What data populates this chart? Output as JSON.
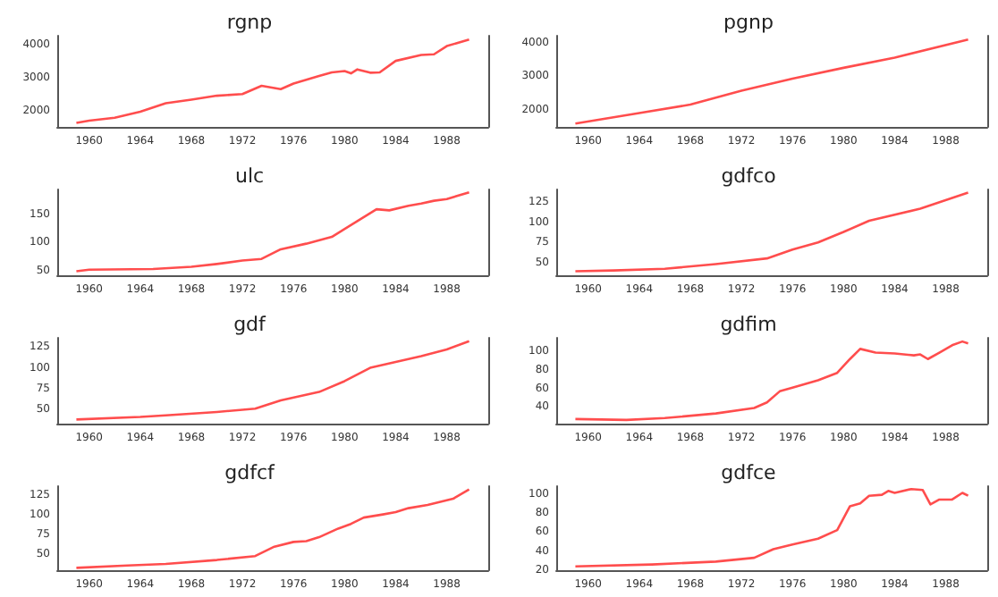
{
  "chart_data": [
    {
      "type": "line",
      "title": "rgnp",
      "color": "#ff4d4d",
      "xlim": [
        1957.5,
        1991.25
      ],
      "xticks": [
        1960,
        1964,
        1968,
        1972,
        1976,
        1980,
        1984,
        1988
      ],
      "ylim": [
        1500,
        4275
      ],
      "yticks": [
        2000,
        3000,
        4000
      ],
      "x": [
        1959,
        1960,
        1962,
        1964,
        1966,
        1968,
        1970,
        1972,
        1973.5,
        1975,
        1976,
        1978,
        1979,
        1980,
        1980.5,
        1981,
        1982,
        1982.75,
        1984,
        1986,
        1987,
        1988,
        1989.75
      ],
      "values": [
        1620,
        1690,
        1780,
        1960,
        2220,
        2330,
        2450,
        2500,
        2750,
        2650,
        2820,
        3050,
        3160,
        3200,
        3130,
        3250,
        3150,
        3160,
        3510,
        3690,
        3710,
        3960,
        4160
      ]
    },
    {
      "type": "line",
      "title": "pgnp",
      "color": "#ff4d4d",
      "xlim": [
        1957.5,
        1991.25
      ],
      "xticks": [
        1960,
        1964,
        1968,
        1972,
        1976,
        1980,
        1984,
        1988
      ],
      "ylim": [
        1500,
        4200
      ],
      "yticks": [
        2000,
        3000,
        4000
      ],
      "x": [
        1959,
        1964,
        1968,
        1972,
        1976,
        1980,
        1984,
        1989.75
      ],
      "values": [
        1600,
        1910,
        2160,
        2570,
        2930,
        3250,
        3550,
        4090
      ]
    },
    {
      "type": "line",
      "title": "ulc",
      "color": "#ff4d4d",
      "xlim": [
        1957.5,
        1991.25
      ],
      "xticks": [
        1960,
        1964,
        1968,
        1972,
        1976,
        1980,
        1984,
        1988
      ],
      "ylim": [
        42,
        194
      ],
      "yticks": [
        50,
        100,
        150
      ],
      "x": [
        1959,
        1960,
        1965,
        1968,
        1970,
        1972,
        1973.5,
        1975,
        1977,
        1979,
        1981,
        1982.5,
        1983.5,
        1985,
        1986,
        1987,
        1988,
        1989.75
      ],
      "values": [
        49,
        52,
        53,
        57,
        62,
        68,
        71,
        88,
        98,
        110,
        138,
        159,
        157,
        165,
        169,
        174,
        177,
        189
      ]
    },
    {
      "type": "line",
      "title": "gdfco",
      "color": "#ff4d4d",
      "xlim": [
        1957.5,
        1991.25
      ],
      "xticks": [
        1960,
        1964,
        1968,
        1972,
        1976,
        1980,
        1984,
        1988
      ],
      "ylim": [
        34,
        141
      ],
      "yticks": [
        50,
        75,
        100,
        125
      ],
      "x": [
        1959,
        1962,
        1966,
        1970,
        1974,
        1976,
        1978,
        1980,
        1982,
        1986,
        1989.75
      ],
      "values": [
        39,
        40,
        42,
        48,
        55,
        66,
        75,
        88,
        102,
        117,
        137
      ]
    },
    {
      "type": "line",
      "title": "gdf",
      "color": "#ff4d4d",
      "xlim": [
        1957.5,
        1991.25
      ],
      "xticks": [
        1960,
        1964,
        1968,
        1972,
        1976,
        1980,
        1984,
        1988
      ],
      "ylim": [
        33,
        136
      ],
      "yticks": [
        50,
        75,
        100,
        125
      ],
      "x": [
        1959,
        1964,
        1966,
        1970,
        1973,
        1975,
        1978,
        1980,
        1982,
        1984,
        1986,
        1988,
        1989.75
      ],
      "values": [
        38,
        41,
        43,
        47,
        51,
        61,
        71,
        84,
        100,
        107,
        114,
        122,
        132
      ]
    },
    {
      "type": "line",
      "title": "gdfim",
      "color": "#ff4d4d",
      "xlim": [
        1957.5,
        1991.25
      ],
      "xticks": [
        1960,
        1964,
        1968,
        1972,
        1976,
        1980,
        1984,
        1988
      ],
      "ylim": [
        22,
        115
      ],
      "yticks": [
        40,
        60,
        80,
        100
      ],
      "x": [
        1959,
        1963,
        1966,
        1970,
        1973,
        1974,
        1975,
        1976,
        1978,
        1979.5,
        1980.5,
        1981.3,
        1982.5,
        1984,
        1985.5,
        1986,
        1986.6,
        1987.5,
        1988.5,
        1989.3,
        1989.75
      ],
      "values": [
        27,
        26,
        28,
        33,
        39,
        45,
        57,
        61,
        69,
        77,
        92,
        103,
        99,
        98,
        96,
        97,
        92,
        99,
        107,
        111,
        109
      ]
    },
    {
      "type": "line",
      "title": "gdfcf",
      "color": "#ff4d4d",
      "xlim": [
        1957.5,
        1991.25
      ],
      "xticks": [
        1960,
        1964,
        1968,
        1972,
        1976,
        1980,
        1984,
        1988
      ],
      "ylim": [
        29,
        136
      ],
      "yticks": [
        50,
        75,
        100,
        125
      ],
      "x": [
        1959,
        1963,
        1966,
        1970,
        1973,
        1974.5,
        1976,
        1977,
        1978,
        1979.5,
        1980.5,
        1981.5,
        1983,
        1984,
        1985,
        1986.5,
        1988.5,
        1989.75
      ],
      "values": [
        32,
        35,
        37,
        42,
        47,
        59,
        65,
        66,
        71,
        82,
        88,
        96,
        100,
        103,
        108,
        112,
        120,
        132
      ]
    },
    {
      "type": "line",
      "title": "gdfce",
      "color": "#ff4d4d",
      "xlim": [
        1957.5,
        1991.25
      ],
      "xticks": [
        1960,
        1964,
        1968,
        1972,
        1976,
        1980,
        1984,
        1988
      ],
      "ylim": [
        20,
        108
      ],
      "yticks": [
        20,
        40,
        60,
        80,
        100
      ],
      "x": [
        1959,
        1965,
        1970,
        1973,
        1974.5,
        1976,
        1978,
        1979.5,
        1980.5,
        1981.3,
        1982,
        1983,
        1983.5,
        1984,
        1985.3,
        1986.2,
        1986.8,
        1987.5,
        1988.5,
        1989.3,
        1989.75
      ],
      "values": [
        24,
        26,
        29,
        33,
        42,
        47,
        53,
        62,
        87,
        90,
        98,
        99,
        103,
        101,
        105,
        104,
        89,
        94,
        94,
        101,
        98
      ]
    }
  ]
}
